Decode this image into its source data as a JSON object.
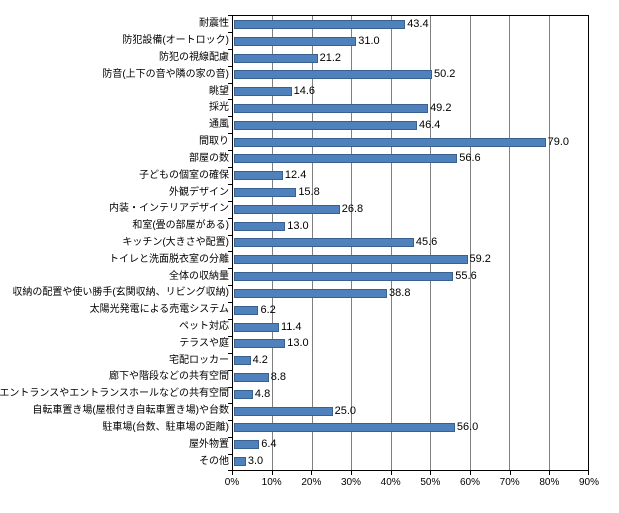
{
  "chart_data": {
    "type": "bar",
    "orientation": "horizontal",
    "title": "",
    "xlabel": "",
    "ylabel": "",
    "categories": [
      "耐震性",
      "防犯設備(オートロック)",
      "防犯の視線配慮",
      "防音(上下の音や隣の家の音)",
      "眺望",
      "採光",
      "通風",
      "間取り",
      "部屋の数",
      "子どもの個室の確保",
      "外観デザイン",
      "内装・インテリアデザイン",
      "和室(畳の部屋がある)",
      "キッチン(大きさや配置)",
      "トイレと洗面脱衣室の分離",
      "全体の収納量",
      "収納の配置や使い勝手(玄関収納、リビング収納)",
      "太陽光発電による売電システム",
      "ペット対応",
      "テラスや庭",
      "宅配ロッカー",
      "廊下や階段などの共有空間",
      "エントランスやエントランスホールなどの共有空間",
      "自転車置き場(屋根付き自転車置き場)や台数",
      "駐車場(台数、駐車場の距離)",
      "屋外物置",
      "その他"
    ],
    "values": [
      43.4,
      31.0,
      21.2,
      50.2,
      14.6,
      49.2,
      46.4,
      79.0,
      56.6,
      12.4,
      15.8,
      26.8,
      13.0,
      45.6,
      59.2,
      55.6,
      38.8,
      6.2,
      11.4,
      13.0,
      4.2,
      8.8,
      4.8,
      25.0,
      56.0,
      6.4,
      3.0
    ],
    "data_labels": [
      "43.4",
      "31.0",
      "21.2",
      "50.2",
      "14.6",
      "49.2",
      "46.4",
      "79.0",
      "56.6",
      "12.4",
      "15.8",
      "26.8",
      "13.0",
      "45.6",
      "59.2",
      "55.6",
      "38.8",
      "6.2",
      "11.4",
      "13.0",
      "4.2",
      "8.8",
      "4.8",
      "25.0",
      "56.0",
      "6.4",
      "3.0"
    ],
    "x_ticks": [
      "0%",
      "10%",
      "20%",
      "30%",
      "40%",
      "50%",
      "60%",
      "70%",
      "80%",
      "90%"
    ],
    "xlim": [
      0,
      90
    ],
    "grid": true,
    "legend": "none",
    "colors": {
      "bar": "#4F81BD",
      "bar_border": "#39618F",
      "gridline": "#808080",
      "axis": "#000000",
      "background": "#FFFFFF",
      "text": "#000000"
    }
  }
}
